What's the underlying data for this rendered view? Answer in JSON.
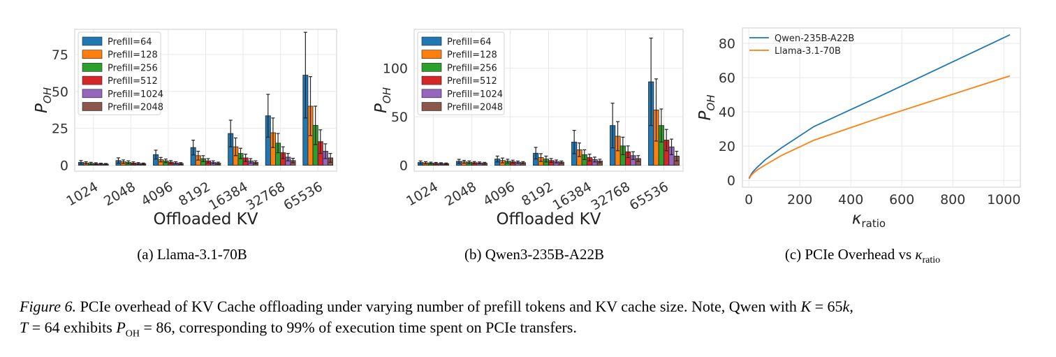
{
  "chart_data": [
    {
      "type": "bar",
      "xlabel": "Offloaded KV",
      "ylabel": "P",
      "ylabel_sub": "OH",
      "categories": [
        "1024",
        "2048",
        "4096",
        "8192",
        "16384",
        "32768",
        "65536"
      ],
      "ylim": [
        -4,
        92
      ],
      "yticks": [
        0,
        25,
        50,
        75
      ],
      "grid": true,
      "legend": "top-left",
      "series": [
        {
          "name": "Prefill=64",
          "color": "#1f77b4",
          "values": [
            2,
            3.2,
            7.2,
            12,
            21.5,
            33.5,
            61
          ],
          "err": [
            1.2,
            1.8,
            3,
            5,
            9,
            14.5,
            29
          ]
        },
        {
          "name": "Prefill=128",
          "color": "#ff7f0e",
          "values": [
            1.6,
            2.4,
            3.8,
            6.5,
            12.5,
            22,
            40
          ],
          "err": [
            0.8,
            1.2,
            1.5,
            3,
            6,
            10,
            20
          ]
        },
        {
          "name": "Prefill=256",
          "color": "#2ca02c",
          "values": [
            1.3,
            2,
            3,
            4.5,
            8,
            15,
            27
          ],
          "err": [
            0.7,
            1,
            1.2,
            2,
            3.5,
            6.5,
            13
          ]
        },
        {
          "name": "Prefill=512",
          "color": "#d62728",
          "values": [
            1.1,
            1.5,
            2.2,
            3,
            5,
            8.5,
            16
          ],
          "err": [
            0.6,
            0.8,
            1,
            1.5,
            2.5,
            4,
            8
          ]
        },
        {
          "name": "Prefill=1024",
          "color": "#9467bd",
          "values": [
            0.9,
            1.2,
            1.6,
            2,
            3,
            5.5,
            9.5
          ],
          "err": [
            0.5,
            0.6,
            0.8,
            1,
            1.5,
            2.5,
            5
          ]
        },
        {
          "name": "Prefill=2048",
          "color": "#8c564b",
          "values": [
            0.8,
            1,
            1.2,
            1.4,
            2,
            3.2,
            5
          ],
          "err": [
            0.4,
            0.5,
            0.6,
            0.7,
            1,
            1.5,
            3
          ]
        }
      ]
    },
    {
      "type": "bar",
      "xlabel": "Offloaded KV",
      "ylabel": "P",
      "ylabel_sub": "OH",
      "categories": [
        "1024",
        "2048",
        "4096",
        "8192",
        "16384",
        "32768",
        "65536"
      ],
      "ylim": [
        -6,
        140
      ],
      "yticks": [
        0,
        50,
        100
      ],
      "grid": true,
      "legend": "top-left",
      "series": [
        {
          "name": "Prefill=64",
          "color": "#1f77b4",
          "values": [
            3,
            4.2,
            6.5,
            12.5,
            24,
            41,
            86
          ],
          "err": [
            1.5,
            2,
            3,
            6,
            12,
            23,
            45
          ]
        },
        {
          "name": "Prefill=128",
          "color": "#ff7f0e",
          "values": [
            2.6,
            3.6,
            5,
            8,
            16,
            30,
            57
          ],
          "err": [
            1.2,
            1.5,
            2.5,
            4,
            7,
            15,
            32
          ]
        },
        {
          "name": "Prefill=256",
          "color": "#2ca02c",
          "values": [
            2.3,
            3.2,
            4.3,
            6.5,
            11,
            20,
            41
          ],
          "err": [
            1,
            1.3,
            2,
            3,
            5,
            9,
            17
          ]
        },
        {
          "name": "Prefill=512",
          "color": "#d62728",
          "values": [
            2.1,
            2.8,
            3.8,
            5,
            8,
            14,
            26
          ],
          "err": [
            0.9,
            1.1,
            1.5,
            2,
            3.5,
            6,
            11
          ]
        },
        {
          "name": "Prefill=1024",
          "color": "#9467bd",
          "values": [
            1.9,
            2.5,
            3.2,
            4,
            6,
            10,
            19
          ],
          "err": [
            0.8,
            1,
            1.2,
            1.5,
            2.5,
            4,
            8
          ]
        },
        {
          "name": "Prefill=2048",
          "color": "#8c564b",
          "values": [
            1.7,
            2.2,
            2.8,
            3.3,
            4.5,
            7,
            9.5
          ],
          "err": [
            0.7,
            0.9,
            1,
            1.2,
            1.8,
            3,
            5
          ]
        }
      ]
    },
    {
      "type": "line",
      "xlabel": "κ",
      "xlabel_sub": "ratio",
      "ylabel": "P",
      "ylabel_sub": "OH",
      "xlim": [
        -25,
        1065
      ],
      "ylim": [
        -4,
        89
      ],
      "xticks": [
        0,
        200,
        400,
        600,
        800,
        1000
      ],
      "yticks": [
        0,
        20,
        40,
        60,
        80
      ],
      "grid": true,
      "legend": "top-left",
      "series": [
        {
          "name": "Qwen-235B-A22B",
          "color": "#1f77b4",
          "x": [
            1,
            8,
            16,
            32,
            64,
            128,
            256,
            512,
            1024
          ],
          "y": [
            1.2,
            3.2,
            5,
            7.5,
            12,
            19,
            31.5,
            49,
            85
          ]
        },
        {
          "name": "Llama-3.1-70B",
          "color": "#ff7f0e",
          "x": [
            1,
            8,
            16,
            32,
            64,
            128,
            256,
            512,
            1024
          ],
          "y": [
            0.9,
            2.6,
            4,
            6,
            9,
            14.5,
            23.5,
            36.5,
            61
          ]
        }
      ]
    }
  ],
  "subcaptions": {
    "a": "(a) Llama-3.1-70B",
    "b": "(b) Qwen3-235B-A22B",
    "c_prefix": "(c) PCIe Overhead vs ",
    "c_kappa": "κ",
    "c_sub": "ratio"
  },
  "caption": {
    "label": "Figure 6.",
    "text1": " PCIe overhead of KV Cache offloading under varying number of prefill tokens and KV cache size. Note, Qwen with ",
    "K": "K",
    "text2": " = 65",
    "k": "k",
    "text3": ",",
    "T": "T",
    "text4": " = 64 exhibits ",
    "P": "P",
    "Psub": "OH",
    "text5": " = 86, corresponding to 99% of execution time spent on PCIe transfers."
  }
}
